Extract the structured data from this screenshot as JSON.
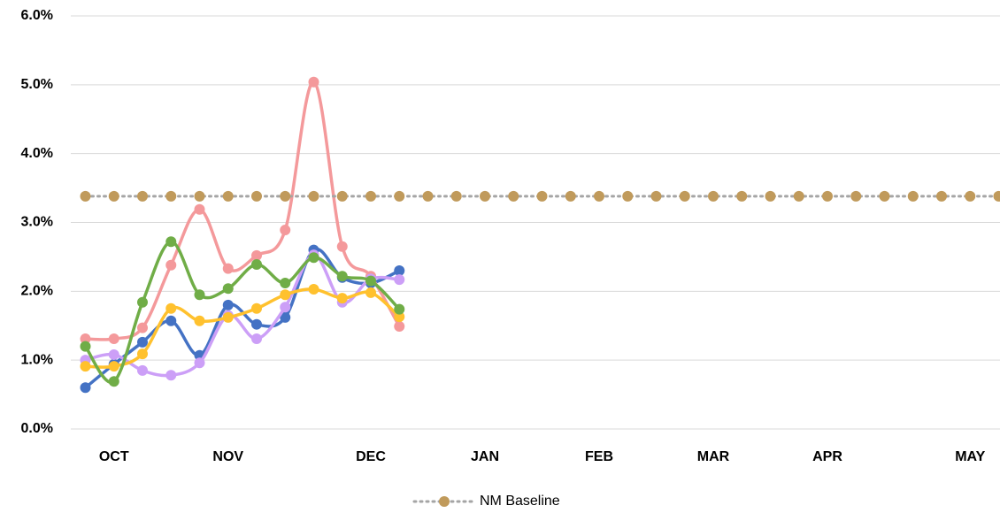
{
  "chart_data": {
    "type": "line",
    "categories": [
      null,
      "OCT",
      null,
      null,
      null,
      "NOV",
      null,
      null,
      null,
      null,
      "DEC",
      null,
      null,
      null,
      "JAN",
      null,
      null,
      null,
      "FEB",
      null,
      null,
      null,
      "MAR",
      null,
      null,
      null,
      "APR",
      null,
      null,
      null,
      null,
      "MAY",
      null
    ],
    "series": [
      {
        "color": "#4472c4",
        "values": [
          0.6,
          0.94,
          1.26,
          1.57,
          1.07,
          1.8,
          1.52,
          1.62,
          2.6,
          2.2,
          2.12,
          2.3,
          null,
          null,
          null,
          null,
          null,
          null,
          null,
          null,
          null,
          null,
          null,
          null,
          null,
          null,
          null,
          null,
          null,
          null,
          null,
          null,
          null
        ]
      },
      {
        "color": "#f4999b",
        "values": [
          1.31,
          1.31,
          1.47,
          2.38,
          3.19,
          2.33,
          2.52,
          2.89,
          5.04,
          2.65,
          2.22,
          1.49,
          null,
          null,
          null,
          null,
          null,
          null,
          null,
          null,
          null,
          null,
          null,
          null,
          null,
          null,
          null,
          null,
          null,
          null,
          null,
          null,
          null
        ]
      },
      {
        "color": "#cc9ff7",
        "values": [
          1.0,
          1.08,
          0.85,
          0.78,
          0.96,
          1.65,
          1.31,
          1.77,
          2.53,
          1.84,
          2.18,
          2.17,
          null,
          null,
          null,
          null,
          null,
          null,
          null,
          null,
          null,
          null,
          null,
          null,
          null,
          null,
          null,
          null,
          null,
          null,
          null,
          null,
          null
        ]
      },
      {
        "color": "#ffc12e",
        "values": [
          0.91,
          0.91,
          1.09,
          1.75,
          1.57,
          1.62,
          1.75,
          1.95,
          2.03,
          1.9,
          1.98,
          1.63,
          null,
          null,
          null,
          null,
          null,
          null,
          null,
          null,
          null,
          null,
          null,
          null,
          null,
          null,
          null,
          null,
          null,
          null,
          null,
          null,
          null
        ]
      },
      {
        "color": "#70ad47",
        "values": [
          1.2,
          0.69,
          1.84,
          2.72,
          1.95,
          2.04,
          2.39,
          2.12,
          2.49,
          2.22,
          2.15,
          1.74,
          null,
          null,
          null,
          null,
          null,
          null,
          null,
          null,
          null,
          null,
          null,
          null,
          null,
          null,
          null,
          null,
          null,
          null,
          null,
          null,
          null
        ]
      },
      {
        "name": "NM Baseline",
        "color": "#c09a5b",
        "line_color": "#a5a5a5",
        "line_style": "dotted",
        "values": [
          3.38,
          3.38,
          3.38,
          3.38,
          3.38,
          3.38,
          3.38,
          3.38,
          3.38,
          3.38,
          3.38,
          3.38,
          3.38,
          3.38,
          3.38,
          3.38,
          3.38,
          3.38,
          3.38,
          3.38,
          3.38,
          3.38,
          3.38,
          3.38,
          3.38,
          3.38,
          3.38,
          3.38,
          3.38,
          3.38,
          3.38,
          3.38,
          3.38
        ]
      }
    ],
    "ylim": [
      0,
      6
    ],
    "yticks": [
      {
        "value": 0,
        "label": "0.0%"
      },
      {
        "value": 1,
        "label": "1.0%"
      },
      {
        "value": 2,
        "label": "2.0%"
      },
      {
        "value": 3,
        "label": "3.0%"
      },
      {
        "value": 4,
        "label": "4.0%"
      },
      {
        "value": 5,
        "label": "5.0%"
      },
      {
        "value": 6,
        "label": "6.0%"
      }
    ],
    "grid": true,
    "legend": "bottom"
  }
}
